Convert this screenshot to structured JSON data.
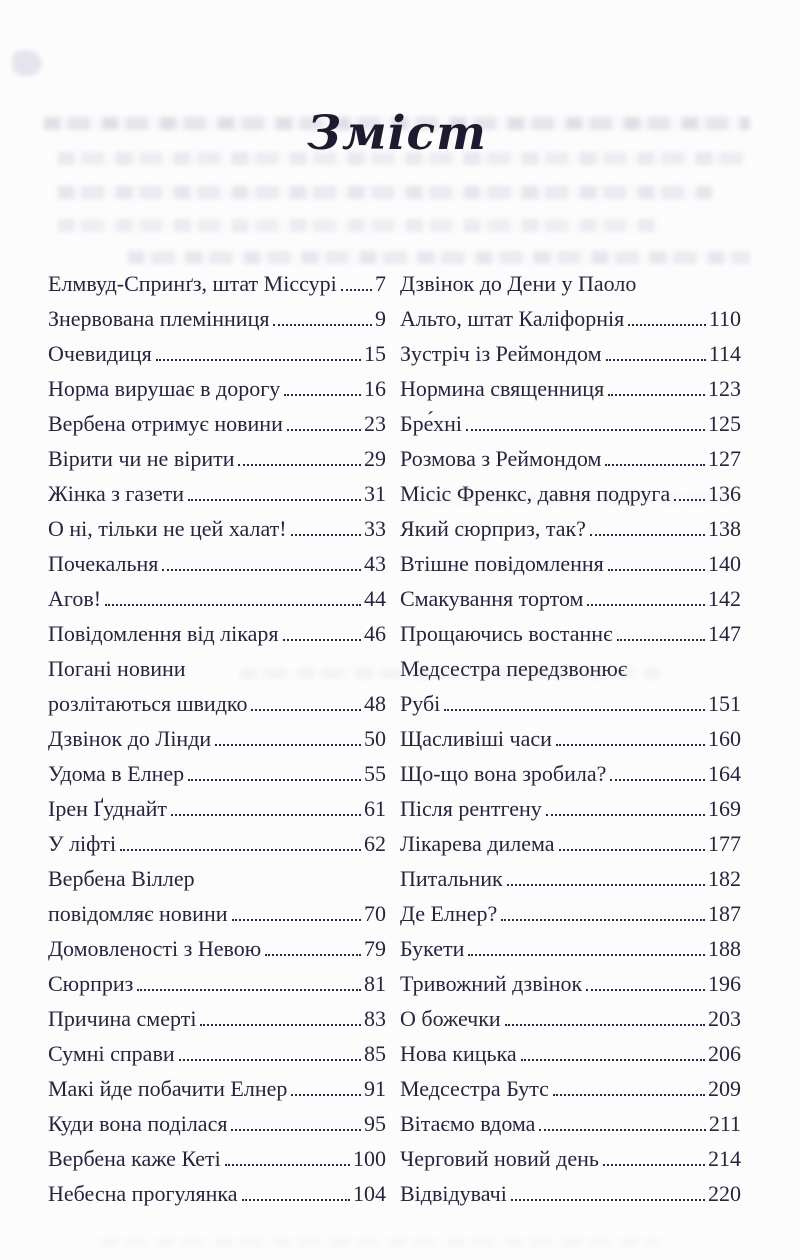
{
  "page": {
    "title": "Зміст"
  },
  "colors": {
    "text": "#26243e",
    "background": "#fcfcfd",
    "leader": "#2b2947"
  },
  "toc": {
    "left": [
      {
        "lines": [
          "Елмвуд-Спринґз, штат Міссурі"
        ],
        "page": "7"
      },
      {
        "lines": [
          "Знервована племінниця"
        ],
        "page": "9"
      },
      {
        "lines": [
          "Очевидиця"
        ],
        "page": "15"
      },
      {
        "lines": [
          "Норма вирушає в дорогу"
        ],
        "page": "16"
      },
      {
        "lines": [
          "Вербена отримує новини"
        ],
        "page": "23"
      },
      {
        "lines": [
          "Вірити чи не вірити"
        ],
        "page": "29"
      },
      {
        "lines": [
          "Жінка з газети"
        ],
        "page": "31"
      },
      {
        "lines": [
          "О ні, тільки не цей халат!"
        ],
        "page": "33"
      },
      {
        "lines": [
          "Почекальня"
        ],
        "page": "43"
      },
      {
        "lines": [
          "Агов!"
        ],
        "page": "44"
      },
      {
        "lines": [
          "Повідомлення від лікаря"
        ],
        "page": "46"
      },
      {
        "lines": [
          "Погані новини",
          "розлітаються швидко"
        ],
        "page": "48"
      },
      {
        "lines": [
          "Дзвінок до Лінди"
        ],
        "page": "50"
      },
      {
        "lines": [
          "Удома в Елнер"
        ],
        "page": "55"
      },
      {
        "lines": [
          "Ірен Ґуднайт"
        ],
        "page": "61"
      },
      {
        "lines": [
          "У ліфті"
        ],
        "page": "62"
      },
      {
        "lines": [
          "Вербена Віллер",
          "повідомляє новини"
        ],
        "page": "70"
      },
      {
        "lines": [
          "Домовленості з Невою"
        ],
        "page": "79"
      },
      {
        "lines": [
          "Сюрприз"
        ],
        "page": "81"
      },
      {
        "lines": [
          "Причина смерті"
        ],
        "page": "83"
      },
      {
        "lines": [
          "Сумні справи"
        ],
        "page": "85"
      },
      {
        "lines": [
          "Макі йде побачити Елнер"
        ],
        "page": "91"
      },
      {
        "lines": [
          "Куди вона поділася"
        ],
        "page": "95"
      },
      {
        "lines": [
          "Вербена каже Кеті"
        ],
        "page": "100"
      },
      {
        "lines": [
          "Небесна прогулянка"
        ],
        "page": "104"
      }
    ],
    "right": [
      {
        "lines": [
          "Дзвінок до Дени у Паоло",
          "Альто, штат Каліфорнія"
        ],
        "page": "110"
      },
      {
        "lines": [
          "Зустріч із Реймондом"
        ],
        "page": "114"
      },
      {
        "lines": [
          "Нормина священниця"
        ],
        "page": "123"
      },
      {
        "lines": [
          "Бре́хні"
        ],
        "page": "125"
      },
      {
        "lines": [
          "Розмова з Реймондом"
        ],
        "page": "127"
      },
      {
        "lines": [
          "Місіс Френкс, давня подруга"
        ],
        "page": "136"
      },
      {
        "lines": [
          "Який сюрприз, так?"
        ],
        "page": "138"
      },
      {
        "lines": [
          "Втішне повідомлення"
        ],
        "page": "140"
      },
      {
        "lines": [
          "Смакування тортом"
        ],
        "page": "142"
      },
      {
        "lines": [
          "Прощаючись востаннє"
        ],
        "page": "147"
      },
      {
        "lines": [
          "Медсестра передзвонює",
          "Рубі"
        ],
        "page": "151"
      },
      {
        "lines": [
          "Щасливіші часи"
        ],
        "page": "160"
      },
      {
        "lines": [
          "Що-що вона зробила?"
        ],
        "page": "164"
      },
      {
        "lines": [
          "Після рентгену"
        ],
        "page": "169"
      },
      {
        "lines": [
          "Лікарева дилема"
        ],
        "page": "177"
      },
      {
        "lines": [
          "Питальник"
        ],
        "page": "182"
      },
      {
        "lines": [
          "Де Елнер?"
        ],
        "page": "187"
      },
      {
        "lines": [
          "Букети"
        ],
        "page": "188"
      },
      {
        "lines": [
          "Тривожний дзвінок"
        ],
        "page": "196"
      },
      {
        "lines": [
          "О божечки"
        ],
        "page": "203"
      },
      {
        "lines": [
          "Нова кицька"
        ],
        "page": "206"
      },
      {
        "lines": [
          "Медсестра Бутс"
        ],
        "page": "209"
      },
      {
        "lines": [
          "Вітаємо вдома"
        ],
        "page": "211"
      },
      {
        "lines": [
          "Черговий новий день"
        ],
        "page": "214"
      },
      {
        "lines": [
          "Відвідувачі"
        ],
        "page": "220"
      }
    ]
  }
}
